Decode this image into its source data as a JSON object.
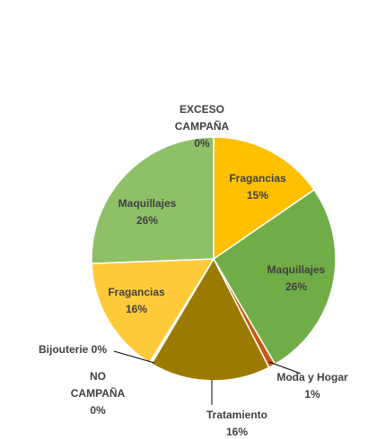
{
  "chart_data": {
    "type": "pie",
    "title": "",
    "slices": [
      {
        "label": "EXCESO CAMPAÑA",
        "label_lines": [
          "EXCESO",
          "CAMPAÑA"
        ],
        "value": 0.001,
        "value_label": "0%",
        "color": "#3f6b2a"
      },
      {
        "label": "Fragancias",
        "label_lines": [
          "Fragancias"
        ],
        "value": 15.4,
        "value_label": "15%",
        "color": "#ffc000"
      },
      {
        "label": "Maquillajes",
        "label_lines": [
          "Maquillajes"
        ],
        "value": 26.2,
        "value_label": "26%",
        "color": "#70ad47"
      },
      {
        "label": "Moda y Hogar",
        "label_lines": [
          "Moda y Hogar"
        ],
        "value": 0.9,
        "value_label": "1%",
        "color": "#c55a11"
      },
      {
        "label": "Tratamiento",
        "label_lines": [
          "Tratamiento"
        ],
        "value": 16.0,
        "value_label": "16%",
        "color": "#9c7a00"
      },
      {
        "label": "NO CAMPAÑA",
        "label_lines": [
          "NO",
          "CAMPAÑA"
        ],
        "value": 0.15,
        "value_label": "0%",
        "color": "#548235"
      },
      {
        "label": "Bijouterie",
        "label_lines": [
          "Bijouterie"
        ],
        "value": 0.15,
        "value_label": "0%",
        "color": "#806000"
      },
      {
        "label": "Fragancias",
        "label_lines": [
          "Fragancias"
        ],
        "value": 15.6,
        "value_label": "16%",
        "color": "#ffca3a"
      },
      {
        "label": "Maquillajes",
        "label_lines": [
          "Maquillajes"
        ],
        "value": 25.6,
        "value_label": "26%",
        "color": "#8fc068"
      }
    ]
  }
}
